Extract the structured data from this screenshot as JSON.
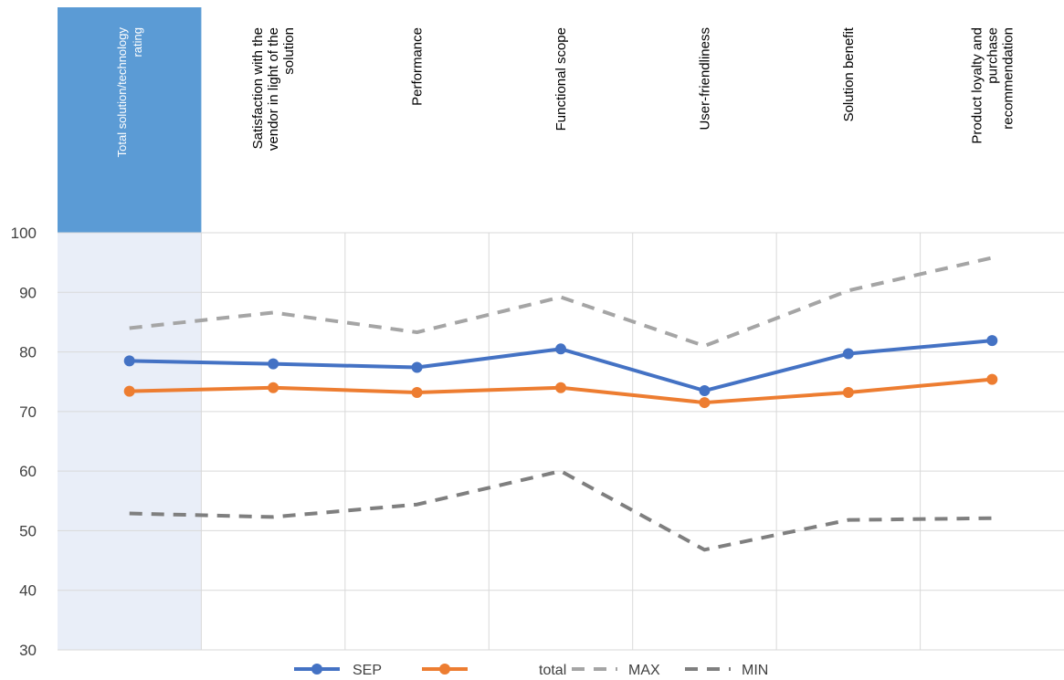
{
  "chart_data": {
    "type": "line",
    "title": "",
    "xlabel": "",
    "ylabel": "",
    "categories": [
      [
        "Total solution/technology",
        "rating"
      ],
      [
        "Satisfaction with the",
        "vendor in light of the",
        "solution"
      ],
      [
        "Performance"
      ],
      [
        "Functional scope"
      ],
      [
        "User-friendliness"
      ],
      [
        "Solution benefit"
      ],
      [
        "Product loyalty and",
        "purchase",
        "recommendation"
      ]
    ],
    "highlight_category": 0,
    "ylim": [
      30,
      100
    ],
    "yticks": [
      30,
      40,
      50,
      60,
      70,
      80,
      90,
      100
    ],
    "grid": true,
    "legend_position": "bottom",
    "series": [
      {
        "name": "SEP",
        "values": [
          78.5,
          78.0,
          77.4,
          80.5,
          73.5,
          79.7,
          81.9
        ],
        "color": "#4472C4",
        "style": "solid",
        "markers": true
      },
      {
        "name": "total",
        "values": [
          73.4,
          74.0,
          73.2,
          74.0,
          71.5,
          73.2,
          75.4
        ],
        "color": "#ED7D31",
        "style": "solid",
        "markers": true
      },
      {
        "name": "MAX",
        "values": [
          84.0,
          86.6,
          83.3,
          89.2,
          81.0,
          90.3,
          95.8
        ],
        "color": "#A5A5A5",
        "style": "dashed",
        "markers": false
      },
      {
        "name": "MIN",
        "values": [
          52.9,
          52.3,
          54.4,
          60.0,
          46.8,
          51.8,
          52.1
        ],
        "color": "#7F7F7F",
        "style": "dashed",
        "markers": false
      }
    ],
    "colors": {
      "highlight_header": "#5B9BD5",
      "highlight_band": "#E9EEF8",
      "grid": "#D9D9D9",
      "axis_text": "#404040"
    }
  }
}
